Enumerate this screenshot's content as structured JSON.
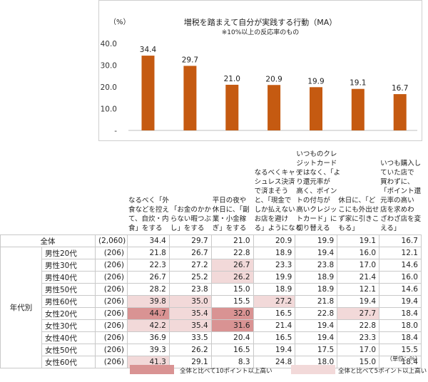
{
  "chart_data": {
    "type": "bar",
    "title": "増税を踏まえて自分が実践する行動（MA）",
    "subtitle": "※10%以上の反応率のもの",
    "ylabel": "（%）",
    "ylim": [
      0,
      40
    ],
    "yticks": [
      "40.0",
      "30.0",
      "20.0",
      "10.0",
      "-"
    ],
    "bar_color": "#c55a11",
    "categories": [
      "なるべく「外\n食などを控え\nて、自炊・内\n食」をする",
      "「お金のかか\nらない暇つぶ\nし」をする",
      "平日の夜や\n休日に、「副\n業・小金稼\nぎ」をする",
      "なるべくキャッ\nシュレス決済\nで済まそう\nと、「現金で\nしか払えない\nお店を避け\nる」ようになる",
      "いつものクレ\nジットカード\nではなく、「よ\nり還元率が\n高く、ポイン\nトの付与が\n高いクレジッ\nトカード」に\n切り替える",
      "休日に、「ど\nこにも外出せ\nず家に引きこ\nもる」",
      "いつも購入し\nていた店で\n買わずに、\n「ポイント還\n元率の高い\n店を求めわ\nざわざ店を変\nえる」"
    ],
    "values": [
      34.4,
      29.7,
      21.0,
      20.9,
      19.9,
      19.1,
      16.7
    ],
    "value_labels": [
      "34.4",
      "29.7",
      "21.0",
      "20.9",
      "19.9",
      "19.1",
      "16.7"
    ]
  },
  "table": {
    "group_label": "年代別",
    "rows": [
      {
        "label": "全体",
        "n": "(2,060)",
        "values": [
          "34.4",
          "29.7",
          "21.0",
          "20.9",
          "19.9",
          "19.1",
          "16.7"
        ],
        "hl": [
          0,
          0,
          0,
          0,
          0,
          0,
          0
        ]
      },
      {
        "label": "男性20代",
        "n": "(206)",
        "values": [
          "21.8",
          "26.7",
          "22.8",
          "18.9",
          "19.4",
          "16.0",
          "12.1"
        ],
        "hl": [
          0,
          0,
          0,
          0,
          0,
          0,
          0
        ]
      },
      {
        "label": "男性30代",
        "n": "(206)",
        "values": [
          "22.3",
          "27.2",
          "26.7",
          "23.3",
          "23.8",
          "17.0",
          "14.6"
        ],
        "hl": [
          0,
          0,
          1,
          0,
          0,
          0,
          0
        ]
      },
      {
        "label": "男性40代",
        "n": "(206)",
        "values": [
          "26.7",
          "25.2",
          "26.2",
          "19.9",
          "18.9",
          "21.4",
          "16.0"
        ],
        "hl": [
          0,
          0,
          1,
          0,
          0,
          0,
          0
        ]
      },
      {
        "label": "男性50代",
        "n": "(206)",
        "values": [
          "28.2",
          "23.8",
          "15.0",
          "18.9",
          "18.9",
          "12.1",
          "14.6"
        ],
        "hl": [
          0,
          0,
          0,
          0,
          0,
          0,
          0
        ]
      },
      {
        "label": "男性60代",
        "n": "(206)",
        "values": [
          "39.8",
          "35.0",
          "15.5",
          "27.2",
          "21.8",
          "19.4",
          "19.4"
        ],
        "hl": [
          1,
          1,
          0,
          1,
          0,
          0,
          0
        ]
      },
      {
        "label": "女性20代",
        "n": "(206)",
        "values": [
          "44.7",
          "35.4",
          "32.0",
          "16.5",
          "22.8",
          "27.7",
          "18.4"
        ],
        "hl": [
          2,
          1,
          2,
          0,
          0,
          1,
          0
        ]
      },
      {
        "label": "女性30代",
        "n": "(206)",
        "values": [
          "42.2",
          "35.4",
          "31.6",
          "21.4",
          "19.4",
          "22.8",
          "18.0"
        ],
        "hl": [
          1,
          1,
          2,
          0,
          0,
          0,
          0
        ]
      },
      {
        "label": "女性40代",
        "n": "(206)",
        "values": [
          "36.9",
          "33.5",
          "20.4",
          "16.5",
          "19.4",
          "23.3",
          "18.4"
        ],
        "hl": [
          0,
          0,
          0,
          0,
          0,
          0,
          0
        ]
      },
      {
        "label": "女性50代",
        "n": "(206)",
        "values": [
          "39.3",
          "26.2",
          "16.5",
          "19.4",
          "17.5",
          "17.0",
          "15.5"
        ],
        "hl": [
          0,
          0,
          0,
          0,
          0,
          0,
          0
        ]
      },
      {
        "label": "女性60代",
        "n": "(206)",
        "values": [
          "41.3",
          "29.1",
          "8.3",
          "24.8",
          "18.0",
          "15.0",
          "18.4"
        ],
        "hl": [
          1,
          0,
          0,
          0,
          0,
          0,
          0
        ]
      }
    ],
    "unit_note": "（単位：％）"
  },
  "legend": {
    "strong_text": "全体と比べて10ポイント以上高い",
    "strong_color": "#d99393",
    "light_text": "全体と比べて5ポイント以上高い",
    "light_color": "#f2d9d9"
  }
}
